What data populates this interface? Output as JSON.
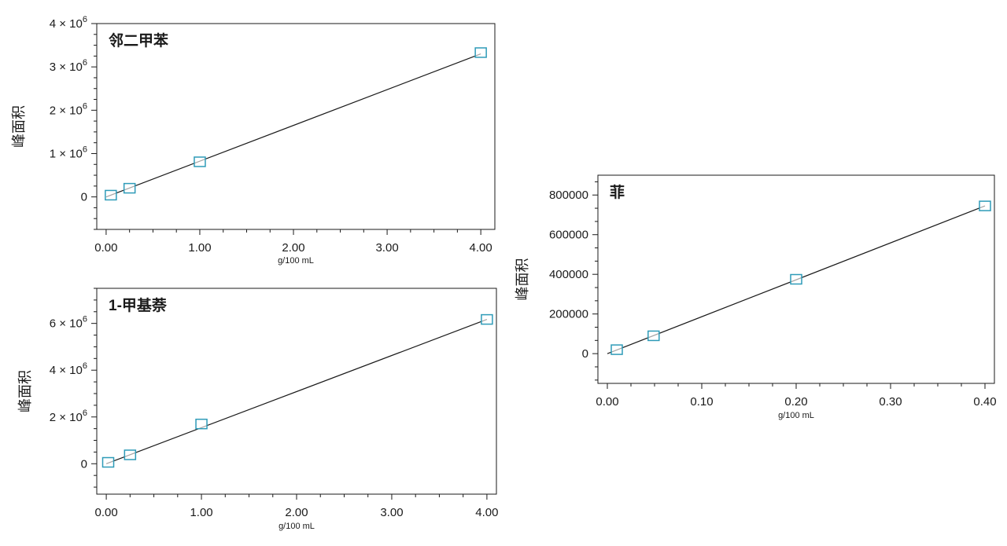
{
  "chart_data": [
    {
      "type": "scatter",
      "title": "邻二甲苯",
      "xlabel": "g/100 mL",
      "ylabel": "峰面积",
      "xlim": [
        -0.1,
        4.15
      ],
      "ylim": [
        -750000,
        4000000
      ],
      "x_ticks": [
        {
          "value": 0,
          "label": "0.00"
        },
        {
          "value": 1,
          "label": "1.00"
        },
        {
          "value": 2,
          "label": "2.00"
        },
        {
          "value": 3,
          "label": "3.00"
        },
        {
          "value": 4,
          "label": "4.00"
        }
      ],
      "y_ticks": [
        {
          "value": 0,
          "base": "0"
        },
        {
          "value": 1000000,
          "base": "1 × 10",
          "exp": "6"
        },
        {
          "value": 2000000,
          "base": "2 × 10",
          "exp": "6"
        },
        {
          "value": 3000000,
          "base": "3 × 10",
          "exp": "6"
        },
        {
          "value": 4000000,
          "base": "4 × 10",
          "exp": "6"
        }
      ],
      "points": [
        [
          0.05,
          40000
        ],
        [
          0.25,
          200000
        ],
        [
          1.0,
          810000
        ],
        [
          4.0,
          3330000
        ]
      ],
      "fit_line": [
        [
          0.0,
          0
        ],
        [
          4.0,
          3300000
        ]
      ],
      "marker_color": "#2e9bb8",
      "line_color": "#1a1a1a"
    },
    {
      "type": "scatter",
      "title": "1-甲基萘",
      "xlabel": "g/100 mL",
      "ylabel": "峰面积",
      "xlim": [
        -0.1,
        4.1
      ],
      "ylim": [
        -1300000,
        7500000
      ],
      "x_ticks": [
        {
          "value": 0,
          "label": "0.00"
        },
        {
          "value": 1,
          "label": "1.00"
        },
        {
          "value": 2,
          "label": "2.00"
        },
        {
          "value": 3,
          "label": "3.00"
        },
        {
          "value": 4,
          "label": "4.00"
        }
      ],
      "y_ticks": [
        {
          "value": 0,
          "base": "0"
        },
        {
          "value": 2000000,
          "base": "2 × 10",
          "exp": "6"
        },
        {
          "value": 4000000,
          "base": "4 × 10",
          "exp": "6"
        },
        {
          "value": 6000000,
          "base": "6 × 10",
          "exp": "6"
        }
      ],
      "points": [
        [
          0.02,
          60000
        ],
        [
          0.25,
          380000
        ],
        [
          1.0,
          1700000
        ],
        [
          4.0,
          6170000
        ]
      ],
      "fit_line": [
        [
          0.0,
          0
        ],
        [
          4.0,
          6170000
        ]
      ],
      "marker_color": "#2e9bb8",
      "line_color": "#1a1a1a"
    },
    {
      "type": "scatter",
      "title": "菲",
      "xlabel": "g/100 mL",
      "ylabel": "峰面积",
      "xlim": [
        -0.01,
        0.41
      ],
      "ylim": [
        -150000,
        900000
      ],
      "x_ticks": [
        {
          "value": 0,
          "label": "0.00"
        },
        {
          "value": 0.1,
          "label": "0.10"
        },
        {
          "value": 0.2,
          "label": "0.20"
        },
        {
          "value": 0.3,
          "label": "0.30"
        },
        {
          "value": 0.4,
          "label": "0.40"
        }
      ],
      "y_ticks": [
        {
          "value": 0,
          "base": "0"
        },
        {
          "value": 200000,
          "base": "200000"
        },
        {
          "value": 400000,
          "base": "400000"
        },
        {
          "value": 600000,
          "base": "600000"
        },
        {
          "value": 800000,
          "base": "800000"
        }
      ],
      "points": [
        [
          0.01,
          20000
        ],
        [
          0.049,
          90000
        ],
        [
          0.2,
          375000
        ],
        [
          0.4,
          745000
        ]
      ],
      "fit_line": [
        [
          0.0,
          0
        ],
        [
          0.4,
          745000
        ]
      ],
      "marker_color": "#2e9bb8",
      "line_color": "#1a1a1a"
    }
  ]
}
